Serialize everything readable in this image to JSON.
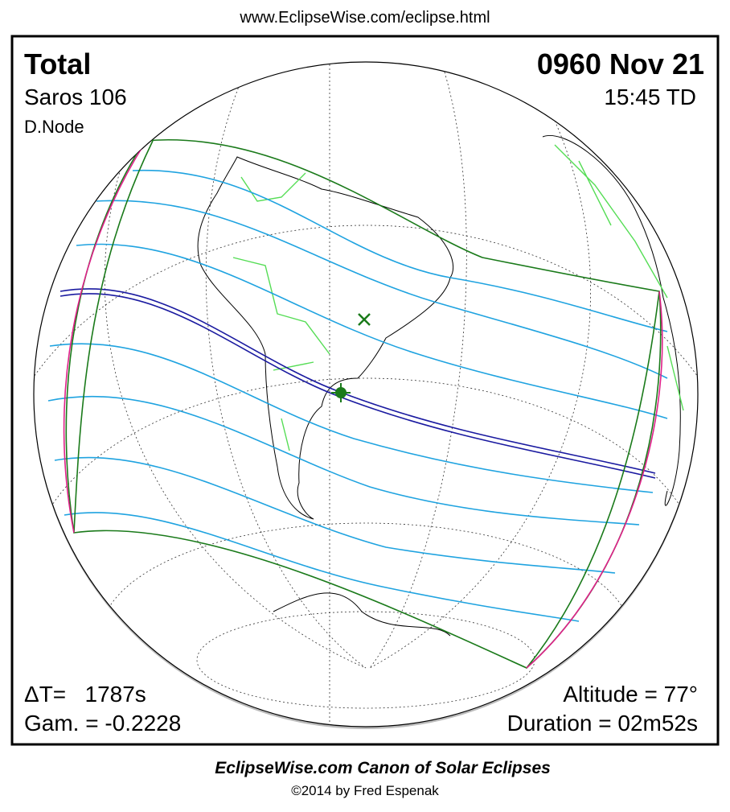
{
  "header": {
    "url": "www.EclipseWise.com/eclipse.html"
  },
  "panel": {
    "eclipse_type": "Total",
    "saros": "Saros 106",
    "node": "D.Node",
    "date": "0960 Nov 21",
    "time": "15:45 TD",
    "delta_t": "ΔT=   1787s",
    "gamma": "Gam. = -0.2228",
    "altitude": "Altitude = 77°",
    "duration": "Duration = 02m52s"
  },
  "footer": {
    "title": "EclipseWise.com Canon of Solar Eclipses",
    "copyright": "©2014 by Fred Espenak"
  }
}
